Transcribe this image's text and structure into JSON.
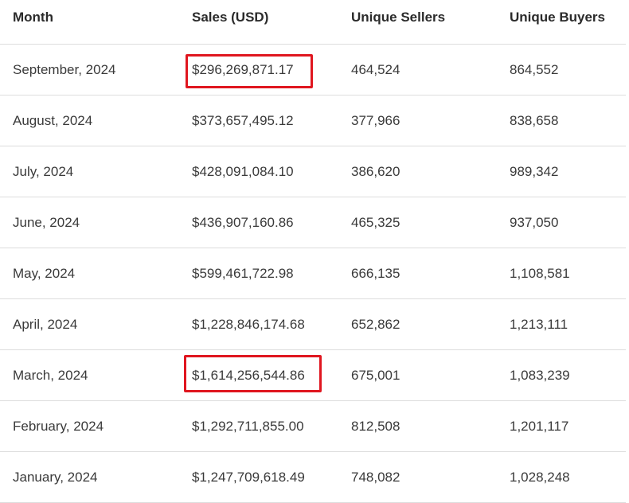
{
  "table": {
    "headers": [
      "Month",
      "Sales (USD)",
      "Unique Sellers",
      "Unique Buyers"
    ],
    "rows": [
      {
        "month": "September, 2024",
        "sales": "$296,269,871.17",
        "sellers": "464,524",
        "buyers": "864,552",
        "highlighted": true
      },
      {
        "month": "August, 2024",
        "sales": "$373,657,495.12",
        "sellers": "377,966",
        "buyers": "838,658",
        "highlighted": false
      },
      {
        "month": "July, 2024",
        "sales": "$428,091,084.10",
        "sellers": "386,620",
        "buyers": "989,342",
        "highlighted": false
      },
      {
        "month": "June, 2024",
        "sales": "$436,907,160.86",
        "sellers": "465,325",
        "buyers": "937,050",
        "highlighted": false
      },
      {
        "month": "May, 2024",
        "sales": "$599,461,722.98",
        "sellers": "666,135",
        "buyers": "1,108,581",
        "highlighted": false
      },
      {
        "month": "April, 2024",
        "sales": "$1,228,846,174.68",
        "sellers": "652,862",
        "buyers": "1,213,111",
        "highlighted": false
      },
      {
        "month": "March, 2024",
        "sales": "$1,614,256,544.86",
        "sellers": "675,001",
        "buyers": "1,083,239",
        "highlighted": true
      },
      {
        "month": "February, 2024",
        "sales": "$1,292,711,855.00",
        "sellers": "812,508",
        "buyers": "1,201,117",
        "highlighted": false
      },
      {
        "month": "January, 2024",
        "sales": "$1,247,709,618.49",
        "sellers": "748,082",
        "buyers": "1,028,248",
        "highlighted": false
      }
    ]
  },
  "colors": {
    "highlight_border": "#e0161f",
    "row_divider": "#dddddd",
    "text": "#3a3a3a"
  }
}
